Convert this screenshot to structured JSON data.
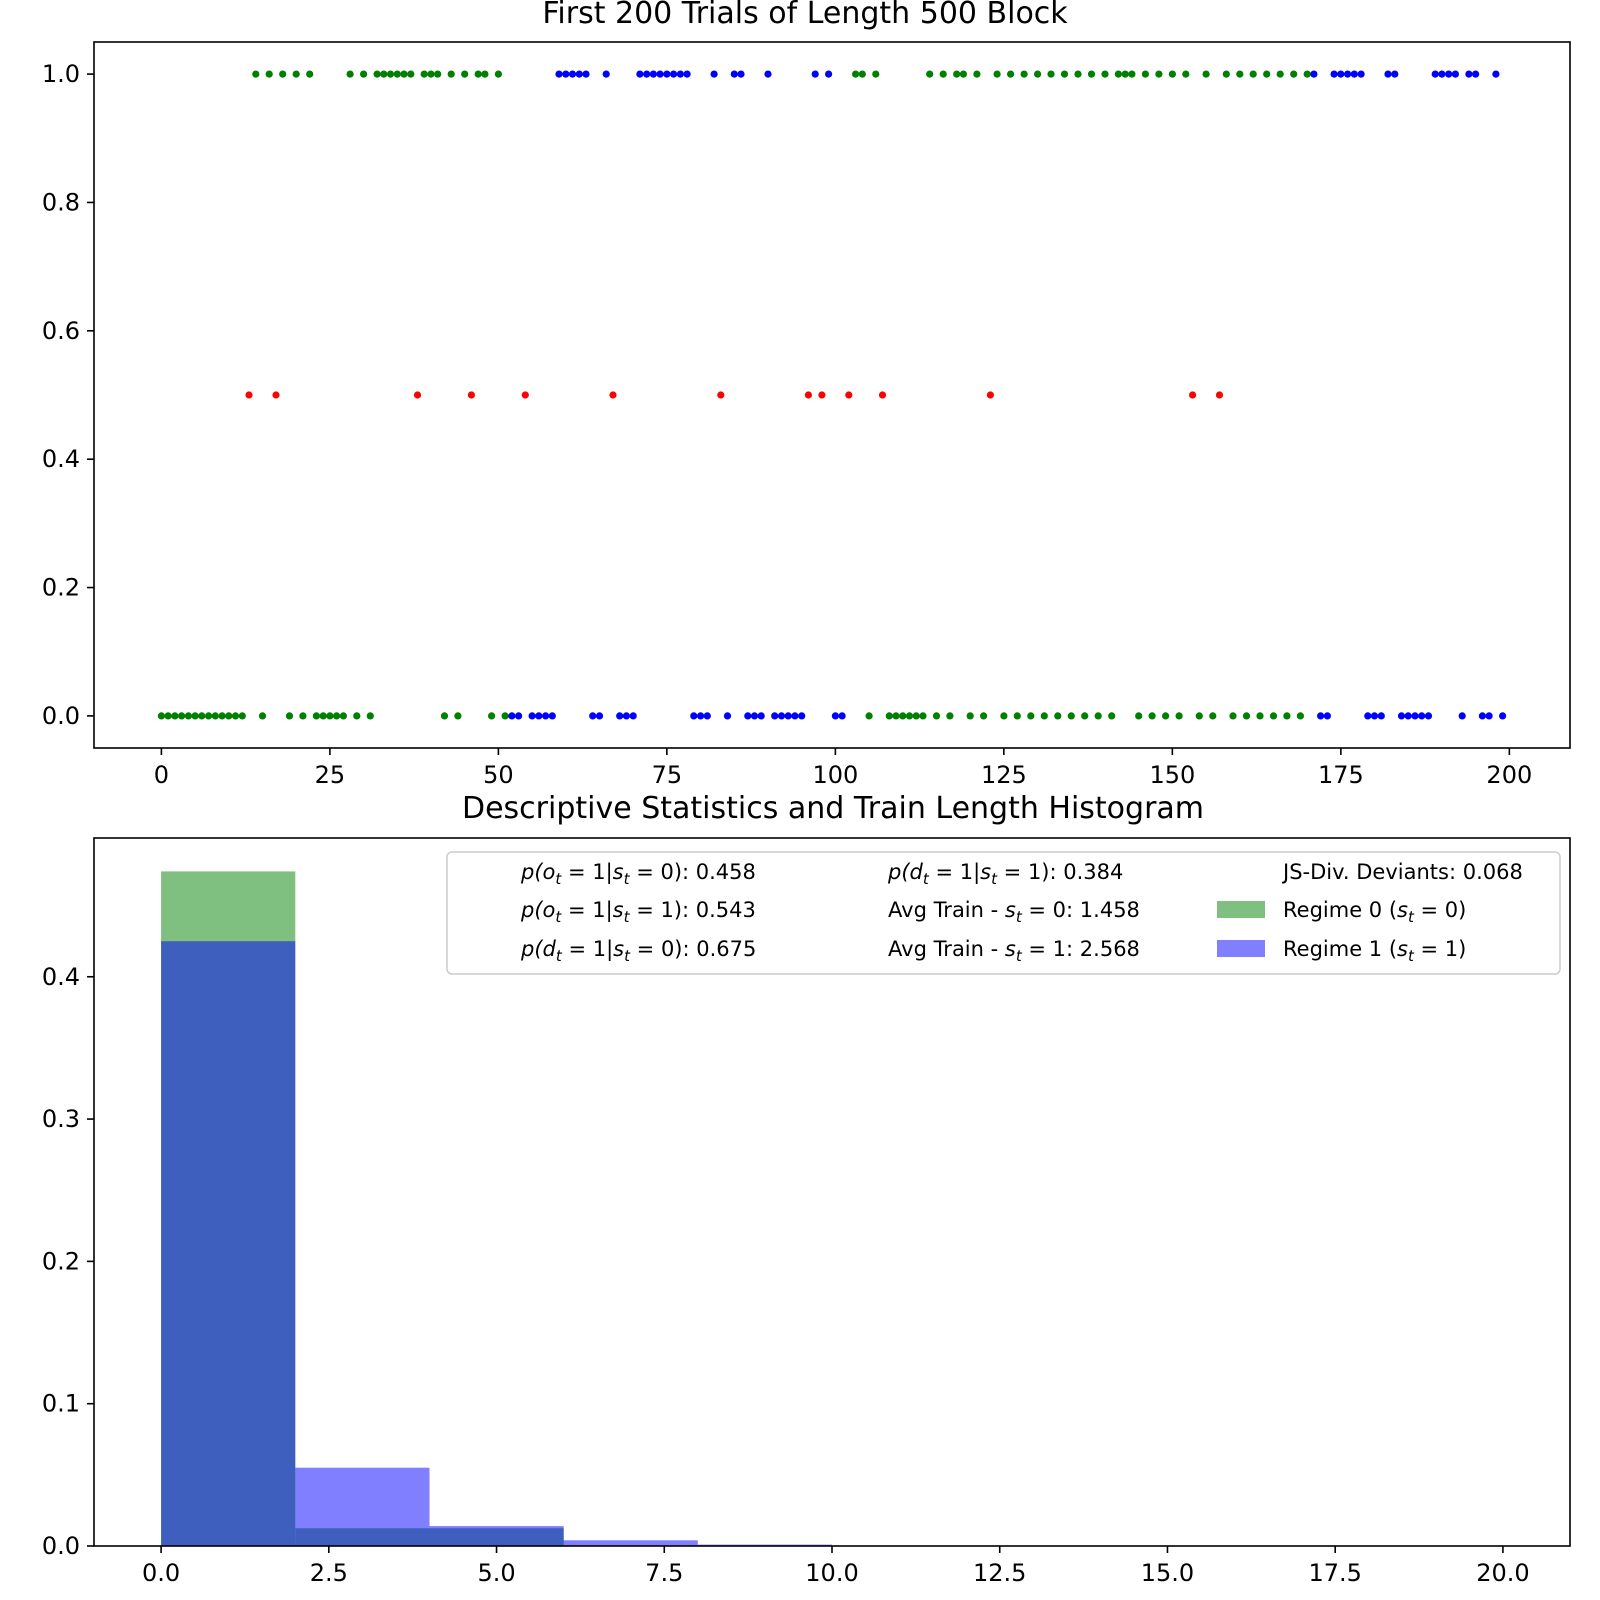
{
  "chart_data": [
    {
      "type": "scatter",
      "title": "First 200 Trials of Length 500 Block",
      "xlabel": "",
      "ylabel": "",
      "xlim": [
        -10,
        209
      ],
      "ylim": [
        -0.05,
        1.05
      ],
      "x_ticks": [
        "0",
        "25",
        "50",
        "75",
        "100",
        "125",
        "150",
        "175",
        "200"
      ],
      "y_ticks": [
        "0.0",
        "0.2",
        "0.4",
        "0.6",
        "0.8",
        "1.0"
      ],
      "grid": false,
      "colors": {
        "regime0": "#008000",
        "regime1": "#0000ff",
        "deviant": "#ff0000"
      },
      "series": [
        {
          "color": "#008000",
          "points": [
            [
              0,
              0
            ],
            [
              1,
              0
            ],
            [
              2,
              0
            ],
            [
              3,
              0
            ],
            [
              4,
              0
            ],
            [
              5,
              0
            ],
            [
              6,
              0
            ],
            [
              7,
              0
            ],
            [
              8,
              0
            ],
            [
              9,
              0
            ],
            [
              10,
              0
            ],
            [
              11,
              0
            ],
            [
              12,
              0
            ],
            [
              15,
              0
            ],
            [
              19,
              0
            ],
            [
              21,
              0
            ],
            [
              23,
              0
            ],
            [
              24,
              0
            ],
            [
              25,
              0
            ],
            [
              26,
              0
            ],
            [
              27,
              0
            ],
            [
              29,
              0
            ],
            [
              31,
              0
            ],
            [
              42,
              0
            ],
            [
              44,
              0
            ],
            [
              49,
              0
            ],
            [
              51,
              0
            ],
            [
              105,
              0
            ],
            [
              108,
              0
            ],
            [
              109,
              0
            ],
            [
              110,
              0
            ],
            [
              111,
              0
            ],
            [
              112,
              0
            ],
            [
              113,
              0
            ],
            [
              115,
              0
            ],
            [
              117,
              0
            ],
            [
              120,
              0
            ],
            [
              122,
              0
            ],
            [
              125,
              0
            ],
            [
              127,
              0
            ],
            [
              129,
              0
            ],
            [
              131,
              0
            ],
            [
              133,
              0
            ],
            [
              135,
              0
            ],
            [
              137,
              0
            ],
            [
              139,
              0
            ],
            [
              141,
              0
            ],
            [
              145,
              0
            ],
            [
              147,
              0
            ],
            [
              149,
              0
            ],
            [
              151,
              0
            ],
            [
              154,
              0
            ],
            [
              156,
              0
            ],
            [
              159,
              0
            ],
            [
              161,
              0
            ],
            [
              163,
              0
            ],
            [
              165,
              0
            ],
            [
              167,
              0
            ],
            [
              169,
              0
            ],
            [
              14,
              1
            ],
            [
              16,
              1
            ],
            [
              18,
              1
            ],
            [
              20,
              1
            ],
            [
              22,
              1
            ],
            [
              28,
              1
            ],
            [
              30,
              1
            ],
            [
              32,
              1
            ],
            [
              33,
              1
            ],
            [
              34,
              1
            ],
            [
              35,
              1
            ],
            [
              36,
              1
            ],
            [
              37,
              1
            ],
            [
              39,
              1
            ],
            [
              40,
              1
            ],
            [
              41,
              1
            ],
            [
              43,
              1
            ],
            [
              45,
              1
            ],
            [
              47,
              1
            ],
            [
              48,
              1
            ],
            [
              50,
              1
            ],
            [
              103,
              1
            ],
            [
              104,
              1
            ],
            [
              106,
              1
            ],
            [
              114,
              1
            ],
            [
              116,
              1
            ],
            [
              118,
              1
            ],
            [
              119,
              1
            ],
            [
              121,
              1
            ],
            [
              124,
              1
            ],
            [
              126,
              1
            ],
            [
              128,
              1
            ],
            [
              130,
              1
            ],
            [
              132,
              1
            ],
            [
              134,
              1
            ],
            [
              136,
              1
            ],
            [
              138,
              1
            ],
            [
              140,
              1
            ],
            [
              142,
              1
            ],
            [
              143,
              1
            ],
            [
              144,
              1
            ],
            [
              146,
              1
            ],
            [
              148,
              1
            ],
            [
              150,
              1
            ],
            [
              152,
              1
            ],
            [
              155,
              1
            ],
            [
              158,
              1
            ],
            [
              160,
              1
            ],
            [
              162,
              1
            ],
            [
              164,
              1
            ],
            [
              166,
              1
            ],
            [
              168,
              1
            ],
            [
              170,
              1
            ]
          ]
        },
        {
          "color": "#0000ff",
          "points": [
            [
              52,
              0
            ],
            [
              53,
              0
            ],
            [
              55,
              0
            ],
            [
              56,
              0
            ],
            [
              57,
              0
            ],
            [
              58,
              0
            ],
            [
              64,
              0
            ],
            [
              65,
              0
            ],
            [
              68,
              0
            ],
            [
              69,
              0
            ],
            [
              70,
              0
            ],
            [
              79,
              0
            ],
            [
              80,
              0
            ],
            [
              81,
              0
            ],
            [
              84,
              0
            ],
            [
              87,
              0
            ],
            [
              88,
              0
            ],
            [
              89,
              0
            ],
            [
              91,
              0
            ],
            [
              92,
              0
            ],
            [
              93,
              0
            ],
            [
              94,
              0
            ],
            [
              95,
              0
            ],
            [
              100,
              0
            ],
            [
              101,
              0
            ],
            [
              172,
              0
            ],
            [
              173,
              0
            ],
            [
              179,
              0
            ],
            [
              180,
              0
            ],
            [
              181,
              0
            ],
            [
              184,
              0
            ],
            [
              185,
              0
            ],
            [
              186,
              0
            ],
            [
              187,
              0
            ],
            [
              188,
              0
            ],
            [
              193,
              0
            ],
            [
              196,
              0
            ],
            [
              197,
              0
            ],
            [
              199,
              0
            ],
            [
              59,
              1
            ],
            [
              60,
              1
            ],
            [
              61,
              1
            ],
            [
              62,
              1
            ],
            [
              63,
              1
            ],
            [
              66,
              1
            ],
            [
              71,
              1
            ],
            [
              72,
              1
            ],
            [
              73,
              1
            ],
            [
              74,
              1
            ],
            [
              75,
              1
            ],
            [
              76,
              1
            ],
            [
              77,
              1
            ],
            [
              78,
              1
            ],
            [
              82,
              1
            ],
            [
              85,
              1
            ],
            [
              86,
              1
            ],
            [
              90,
              1
            ],
            [
              97,
              1
            ],
            [
              99,
              1
            ],
            [
              171,
              1
            ],
            [
              174,
              1
            ],
            [
              175,
              1
            ],
            [
              176,
              1
            ],
            [
              177,
              1
            ],
            [
              178,
              1
            ],
            [
              182,
              1
            ],
            [
              183,
              1
            ],
            [
              189,
              1
            ],
            [
              190,
              1
            ],
            [
              191,
              1
            ],
            [
              192,
              1
            ],
            [
              194,
              1
            ],
            [
              195,
              1
            ],
            [
              198,
              1
            ]
          ]
        },
        {
          "color": "#ff0000",
          "points": [
            [
              13,
              0.5
            ],
            [
              17,
              0.5
            ],
            [
              38,
              0.5
            ],
            [
              46,
              0.5
            ],
            [
              54,
              0.5
            ],
            [
              67,
              0.5
            ],
            [
              83,
              0.5
            ],
            [
              96,
              0.5
            ],
            [
              98,
              0.5
            ],
            [
              102,
              0.5
            ],
            [
              107,
              0.5
            ],
            [
              123,
              0.5
            ],
            [
              153,
              0.5
            ],
            [
              157,
              0.5
            ]
          ]
        }
      ]
    },
    {
      "type": "bar",
      "title": "Descriptive Statistics and Train Length Histogram",
      "xlabel": "",
      "ylabel": "",
      "xlim": [
        -1,
        21
      ],
      "ylim": [
        0,
        0.4975
      ],
      "x_ticks": [
        "0.0",
        "2.5",
        "5.0",
        "7.5",
        "10.0",
        "12.5",
        "15.0",
        "17.5",
        "20.0"
      ],
      "y_ticks": [
        "0.0",
        "0.1",
        "0.2",
        "0.3",
        "0.4"
      ],
      "grid": false,
      "bin_edges": [
        0,
        2,
        4,
        6,
        8,
        10
      ],
      "series": [
        {
          "name": "Regime 0 (",
          "name_math": "s",
          "name_sub": "t",
          "name_tail": " = 0)",
          "color": "#008000",
          "opacity": 0.5,
          "values": [
            0.474,
            0.0125,
            0.0125,
            0.0,
            0.0
          ]
        },
        {
          "name": "Regime 1 (",
          "name_math": "s",
          "name_sub": "t",
          "name_tail": " = 1)",
          "color": "#0000ff",
          "opacity": 0.5,
          "values": [
            0.425,
            0.055,
            0.014,
            0.004,
            0.001
          ]
        }
      ],
      "legend_position": "upper right",
      "stats": [
        {
          "p": "p(",
          "a": "o",
          "as": "t",
          "mid": " = 1|",
          "b": "s",
          "bs": "t",
          "end": " = 0): 0.458"
        },
        {
          "p": "p(",
          "a": "o",
          "as": "t",
          "mid": " = 1|",
          "b": "s",
          "bs": "t",
          "end": " = 1): 0.543"
        },
        {
          "p": "p(",
          "a": "d",
          "as": "t",
          "mid": " = 1|",
          "b": "s",
          "bs": "t",
          "end": " = 0): 0.675"
        },
        {
          "p": "p(",
          "a": "d",
          "as": "t",
          "mid": " = 1|",
          "b": "s",
          "bs": "t",
          "end": " = 1): 0.384"
        }
      ],
      "avg_train": [
        {
          "pre": "Avg Train - ",
          "v": "s",
          "vs": "t",
          "end": " = 0: 1.458"
        },
        {
          "pre": "Avg Train - ",
          "v": "s",
          "vs": "t",
          "end": " = 1: 2.568"
        }
      ],
      "js_div": "JS-Div. Deviants: 0.068"
    }
  ]
}
